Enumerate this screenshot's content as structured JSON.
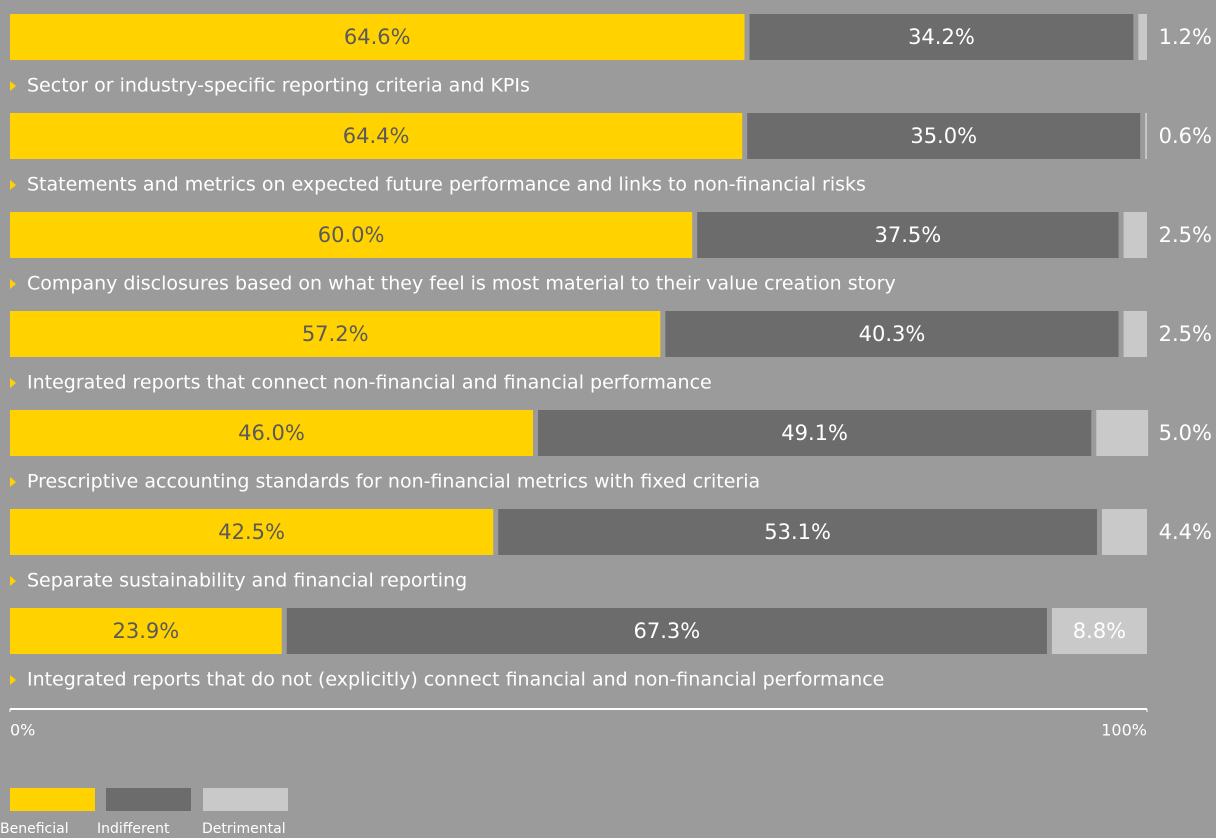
{
  "chart_data": {
    "type": "stacked-bar-horizontal",
    "categories": [
      "Sector or industry-specific reporting criteria and KPIs",
      "Statements and metrics on expected future performance and links to non-financial risks",
      "Company disclosures based on what they feel is most material to their value creation story",
      "Integrated reports that connect non-financial and financial performance",
      "Prescriptive accounting standards for non-financial metrics with fixed criteria",
      "Separate sustainability and financial reporting",
      "Integrated reports that do not (explicitly) connect financial and non-financial performance"
    ],
    "series": [
      {
        "name": "Beneficial",
        "color": "#ffd200",
        "label_color": "#5a5a5a",
        "values": [
          64.6,
          64.4,
          60.0,
          57.2,
          46.0,
          42.5,
          23.9
        ],
        "value_labels": [
          "64.6%",
          "64.4%",
          "60.0%",
          "57.2%",
          "46.0%",
          "42.5%",
          "23.9%"
        ]
      },
      {
        "name": "Indifferent",
        "color": "#6c6c6c",
        "label_color": "#ffffff",
        "values": [
          34.2,
          35.0,
          37.5,
          40.3,
          49.1,
          53.1,
          67.3
        ],
        "value_labels": [
          "34.2%",
          "35.0%",
          "37.5%",
          "40.3%",
          "49.1%",
          "53.1%",
          "67.3%"
        ]
      },
      {
        "name": "Detrimental",
        "color": "#c9c9c9",
        "label_color": "#ffffff",
        "values": [
          1.2,
          0.6,
          2.5,
          2.5,
          5.0,
          4.4,
          8.8
        ],
        "value_labels": [
          "1.2%",
          "0.6%",
          "2.5%",
          "2.5%",
          "5.0%",
          "4.4%",
          "8.8%"
        ]
      }
    ],
    "xlim": [
      0,
      100
    ],
    "xticks": [
      {
        "value": 0,
        "label": "0%"
      },
      {
        "value": 100,
        "label": "100%"
      }
    ]
  }
}
